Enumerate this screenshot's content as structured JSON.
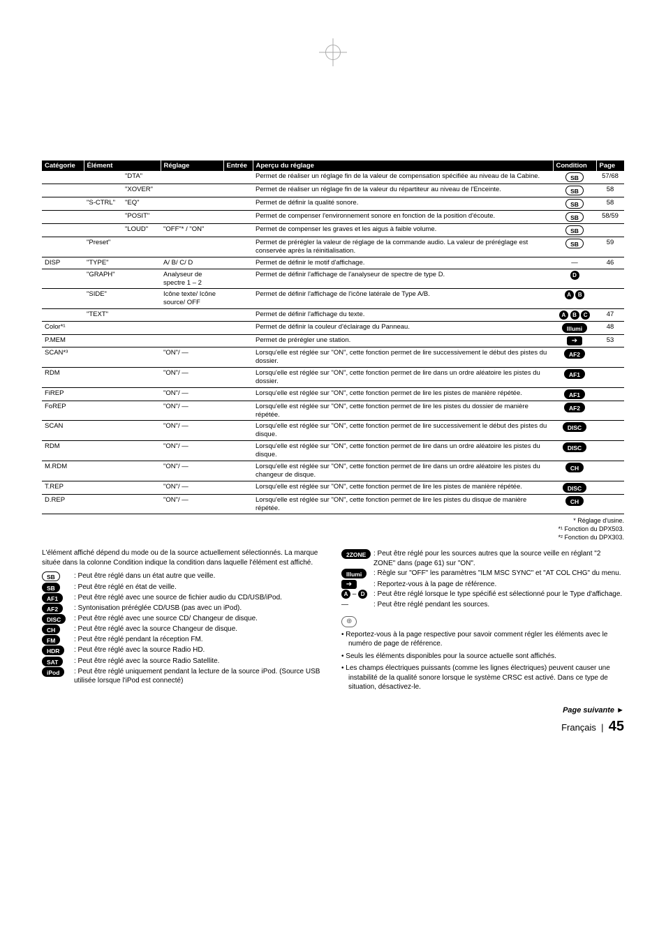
{
  "headers": {
    "cat": "Catégorie",
    "el": "Élément",
    "reg": "Réglage",
    "ent": "Entrée",
    "ap": "Aperçu du réglage",
    "cond": "Condition",
    "page": "Page"
  },
  "rows": [
    {
      "cat": "",
      "el1": "",
      "el2": "\"DTA\"",
      "reg": "",
      "ent": "",
      "ap": "Permet de réaliser un réglage fin de la valeur de compensation spécifiée au niveau de la Cabine.",
      "cond": [
        {
          "t": "badge-outline",
          "v": "SB"
        }
      ],
      "page": "57/68"
    },
    {
      "cat": "",
      "el1": "",
      "el2": "\"XOVER\"",
      "reg": "",
      "ent": "",
      "ap": "Permet de réaliser un réglage fin de la valeur du répartiteur au niveau de l'Enceinte.",
      "cond": [
        {
          "t": "badge-outline",
          "v": "SB"
        }
      ],
      "page": "58"
    },
    {
      "cat": "",
      "el1": "\"S-CTRL\"",
      "el2": "\"EQ\"",
      "reg": "",
      "ent": "",
      "ap": "Permet de définir la qualité sonore.",
      "cond": [
        {
          "t": "badge-outline",
          "v": "SB"
        }
      ],
      "page": "58"
    },
    {
      "cat": "",
      "el1": "",
      "el2": "\"POSIT\"",
      "reg": "",
      "ent": "",
      "ap": "Permet de compenser l'environnement sonore en fonction de la position d'écoute.",
      "cond": [
        {
          "t": "badge-outline",
          "v": "SB"
        }
      ],
      "page": "58/59"
    },
    {
      "cat": "",
      "el1": "",
      "el2": "\"LOUD\"",
      "reg": "\"OFF\"* / \"ON\"",
      "ent": "",
      "ap": "Permet de compenser les graves et les aigus à faible volume.",
      "cond": [
        {
          "t": "badge-outline",
          "v": "SB"
        }
      ],
      "page": ""
    },
    {
      "cat": "",
      "el1": "\"Preset\"",
      "el2": "",
      "reg": "",
      "ent": "",
      "ap": "Permet de prérégler la valeur de réglage de la commande audio. La valeur de préréglage est conservée après la réinitialisation.",
      "cond": [
        {
          "t": "badge-outline",
          "v": "SB"
        }
      ],
      "page": "59"
    },
    {
      "cat": "DISP",
      "el1": "\"TYPE\"",
      "el2": "",
      "reg": "A/ B/ C/ D",
      "ent": "",
      "ap": "Permet de définir le motif d'affichage.",
      "cond": [
        {
          "t": "text",
          "v": "—"
        }
      ],
      "page": "46"
    },
    {
      "cat": "",
      "el1": "\"GRAPH\"",
      "el2": "",
      "reg": "Analyseur de spectre 1 – 2",
      "ent": "",
      "ap": "Permet de définir l'affichage de l'analyseur de spectre de type D.",
      "cond": [
        {
          "t": "circ",
          "v": "D"
        }
      ],
      "page": ""
    },
    {
      "cat": "",
      "el1": "\"SIDE\"",
      "el2": "",
      "reg": "Icône texte/ Icône source/ OFF",
      "ent": "",
      "ap": "Permet de définir l'affichage de l'icône latérale de Type A/B.",
      "cond": [
        {
          "t": "circ",
          "v": "A"
        },
        {
          "t": "circ",
          "v": "B"
        }
      ],
      "page": ""
    },
    {
      "cat": "",
      "el1": "\"TEXT\"",
      "el2": "",
      "reg": "",
      "ent": "",
      "ap": "Permet de définir l'affichage du texte.",
      "cond": [
        {
          "t": "circ",
          "v": "A"
        },
        {
          "t": "circ",
          "v": "B"
        },
        {
          "t": "circ",
          "v": "C"
        }
      ],
      "page": "47"
    },
    {
      "cat": "Color*¹",
      "el1": "",
      "el2": "",
      "reg": "",
      "ent": "",
      "ap": "Permet de définir la couleur d'éclairage du Panneau.",
      "cond": [
        {
          "t": "badge-solid",
          "v": "Illumi"
        }
      ],
      "page": "48"
    },
    {
      "cat": "P.MEM",
      "el1": "",
      "el2": "",
      "reg": "",
      "ent": "",
      "ap": "Permet de prérégler une station.",
      "cond": [
        {
          "t": "arrow"
        }
      ],
      "page": "53"
    },
    {
      "cat": "SCAN*³",
      "el1": "",
      "el2": "",
      "reg": "\"ON\"/ —",
      "ent": "",
      "ap": "Lorsqu'elle est réglée sur \"ON\", cette fonction permet de lire successivement le début des pistes du dossier.",
      "cond": [
        {
          "t": "badge-solid",
          "v": "AF2"
        }
      ],
      "page": ""
    },
    {
      "cat": "RDM",
      "el1": "",
      "el2": "",
      "reg": "\"ON\"/ —",
      "ent": "",
      "ap": "Lorsqu'elle est réglée sur \"ON\", cette fonction permet de lire dans un ordre aléatoire les pistes du dossier.",
      "cond": [
        {
          "t": "badge-solid",
          "v": "AF1"
        }
      ],
      "page": ""
    },
    {
      "cat": "FiREP",
      "el1": "",
      "el2": "",
      "reg": "\"ON\"/ —",
      "ent": "",
      "ap": "Lorsqu'elle est réglée sur \"ON\", cette fonction permet de lire les pistes de manière répétée.",
      "cond": [
        {
          "t": "badge-solid",
          "v": "AF1"
        }
      ],
      "page": ""
    },
    {
      "cat": "FoREP",
      "el1": "",
      "el2": "",
      "reg": "\"ON\"/ —",
      "ent": "",
      "ap": "Lorsqu'elle est réglée sur \"ON\", cette fonction permet de lire les pistes du dossier de manière répétée.",
      "cond": [
        {
          "t": "badge-solid",
          "v": "AF2"
        }
      ],
      "page": ""
    },
    {
      "cat": "SCAN",
      "el1": "",
      "el2": "",
      "reg": "\"ON\"/ —",
      "ent": "",
      "ap": "Lorsqu'elle est réglée sur \"ON\", cette fonction permet de lire successivement le début des pistes du disque.",
      "cond": [
        {
          "t": "badge-solid",
          "v": "DISC"
        }
      ],
      "page": ""
    },
    {
      "cat": "RDM",
      "el1": "",
      "el2": "",
      "reg": "\"ON\"/ —",
      "ent": "",
      "ap": "Lorsqu'elle est réglée sur \"ON\", cette fonction permet de lire dans un ordre aléatoire les pistes du disque.",
      "cond": [
        {
          "t": "badge-solid",
          "v": "DISC"
        }
      ],
      "page": ""
    },
    {
      "cat": "M.RDM",
      "el1": "",
      "el2": "",
      "reg": "\"ON\"/ —",
      "ent": "",
      "ap": "Lorsqu'elle est réglée sur \"ON\", cette fonction permet de lire dans un ordre aléatoire les pistes du changeur de disque.",
      "cond": [
        {
          "t": "badge-solid",
          "v": "CH"
        }
      ],
      "page": ""
    },
    {
      "cat": "T.REP",
      "el1": "",
      "el2": "",
      "reg": "\"ON\"/ —",
      "ent": "",
      "ap": "Lorsqu'elle est réglée sur \"ON\", cette fonction permet de lire les pistes de manière répétée.",
      "cond": [
        {
          "t": "badge-solid",
          "v": "DISC"
        }
      ],
      "page": ""
    },
    {
      "cat": "D.REP",
      "el1": "",
      "el2": "",
      "reg": "\"ON\"/ —",
      "ent": "",
      "ap": "Lorsqu'elle est réglée sur \"ON\", cette fonction permet de lire les pistes du disque de manière répétée.",
      "cond": [
        {
          "t": "badge-solid",
          "v": "CH"
        }
      ],
      "page": ""
    }
  ],
  "footnotes": [
    "* Réglage d'usine.",
    "*¹ Fonction du DPX503.",
    "*² Fonction du DPX303."
  ],
  "intro_left": "L'élément affiché dépend du mode ou de la source actuellement sélectionnés. La marque située dans la colonne Condition indique la condition dans laquelle l'élément est affiché.",
  "legend_left": [
    {
      "icon": [
        {
          "t": "badge-outline",
          "v": "SB"
        }
      ],
      "txt": ": Peut être réglé dans un état autre que veille."
    },
    {
      "icon": [
        {
          "t": "badge-solid",
          "v": "SB"
        }
      ],
      "txt": ": Peut être réglé en état de veille."
    },
    {
      "icon": [
        {
          "t": "badge-solid",
          "v": "AF1"
        }
      ],
      "txt": ": Peut être réglé avec une source de fichier audio du CD/USB/iPod."
    },
    {
      "icon": [
        {
          "t": "badge-solid",
          "v": "AF2"
        }
      ],
      "txt": ": Syntonisation préréglée CD/USB (pas avec un iPod)."
    },
    {
      "icon": [
        {
          "t": "badge-solid",
          "v": "DISC"
        }
      ],
      "txt": ": Peut être réglé avec une source CD/ Changeur de disque."
    },
    {
      "icon": [
        {
          "t": "badge-solid",
          "v": "CH"
        }
      ],
      "txt": ": Peut être réglé avec la source Changeur de disque."
    },
    {
      "icon": [
        {
          "t": "badge-solid",
          "v": "FM"
        }
      ],
      "txt": ": Peut être réglé pendant la réception FM."
    },
    {
      "icon": [
        {
          "t": "badge-solid",
          "v": "HDR"
        }
      ],
      "txt": ": Peut être réglé avec la source Radio HD."
    },
    {
      "icon": [
        {
          "t": "badge-solid",
          "v": "SAT"
        }
      ],
      "txt": ": Peut être réglé avec la source Radio Satellite."
    },
    {
      "icon": [
        {
          "t": "badge-solid",
          "v": "iPod"
        }
      ],
      "txt": ": Peut être réglé uniquement pendant la lecture de la source iPod. (Source USB utilisée lorsque l'iPod est connecté)"
    }
  ],
  "legend_right": [
    {
      "icon": [
        {
          "t": "badge-solid",
          "v": "2ZONE"
        }
      ],
      "txt": ": Peut être réglé pour les sources autres que la source veille en réglant \"2 ZONE\" dans <Réglage audio> (page 61) sur \"ON\"."
    },
    {
      "icon": [
        {
          "t": "badge-solid",
          "v": "Illumi"
        }
      ],
      "txt": ": Règle sur \"OFF\" les paramètres \"ILM MSC SYNC\" et \"AT COL CHG\" du menu."
    },
    {
      "icon": [
        {
          "t": "arrow"
        }
      ],
      "txt": ": Reportez-vous à la page de référence."
    },
    {
      "icon": [
        {
          "t": "circ",
          "v": "A"
        },
        {
          "t": "text",
          "v": "–"
        },
        {
          "t": "circ",
          "v": "D"
        }
      ],
      "txt": ": Peut être réglé lorsque le type spécifié est sélectionné pour le Type d'affichage."
    },
    {
      "icon": [
        {
          "t": "text",
          "v": "—"
        }
      ],
      "txt": ": Peut être réglé pendant les sources."
    }
  ],
  "notes": [
    "Reportez-vous à la page respective pour savoir comment régler les éléments avec le numéro de page de référence.",
    "Seuls les éléments disponibles pour la source actuelle sont affichés.",
    "Les champs électriques puissants (comme les lignes électriques) peuvent causer une instabilité de la qualité sonore lorsque le système CRSC est activé. Dans ce type de situation, désactivez-le."
  ],
  "page_suivante": "Page suivante ►",
  "footer_lang": "Français",
  "footer_page": "45"
}
